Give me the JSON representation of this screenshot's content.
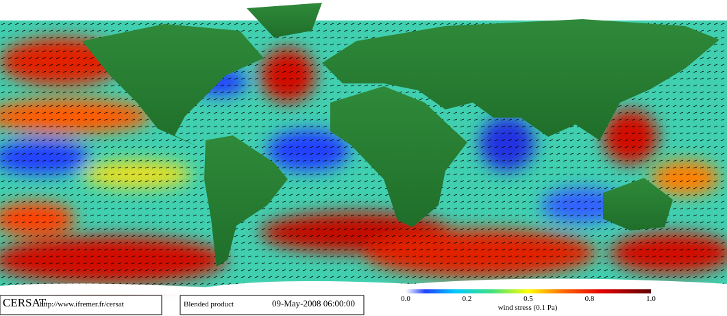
{
  "logo": "CERSAT",
  "url": "http://www.ifremer.fr/cersat",
  "product": "Blended product",
  "timestamp": "09-May-2008 06:00:00",
  "colorbar": {
    "label": "wind stress (0.1 Pa)",
    "ticks": [
      "0.0",
      "0.2",
      "0.5",
      "0.8",
      "1.0"
    ]
  }
}
